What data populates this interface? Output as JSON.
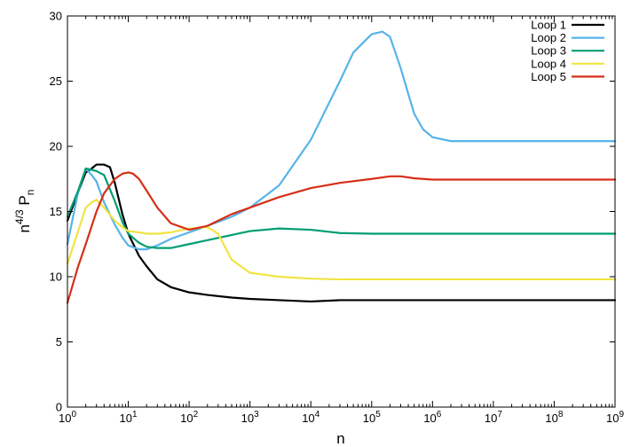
{
  "chart_data": {
    "type": "line",
    "title": "",
    "xlabel": "n",
    "ylabel": {
      "base": "n",
      "sup": "4/3",
      "main": " P",
      "sub": "n"
    },
    "xscale": "log",
    "xlim": [
      1,
      1000000000
    ],
    "ylim": [
      0,
      30
    ],
    "x_ticks": [
      {
        "value": 1,
        "base": "10",
        "exp": "0"
      },
      {
        "value": 10,
        "base": "10",
        "exp": "1"
      },
      {
        "value": 100,
        "base": "10",
        "exp": "2"
      },
      {
        "value": 1000,
        "base": "10",
        "exp": "3"
      },
      {
        "value": 10000,
        "base": "10",
        "exp": "4"
      },
      {
        "value": 100000,
        "base": "10",
        "exp": "5"
      },
      {
        "value": 1000000,
        "base": "10",
        "exp": "6"
      },
      {
        "value": 10000000,
        "base": "10",
        "exp": "7"
      },
      {
        "value": 100000000,
        "base": "10",
        "exp": "8"
      },
      {
        "value": 1000000000,
        "base": "10",
        "exp": "9"
      }
    ],
    "y_ticks": [
      "0",
      "5",
      "10",
      "15",
      "20",
      "25",
      "30"
    ],
    "grid": false,
    "legend_position": "top-right",
    "series": [
      {
        "name": "Loop 1",
        "color": "#000000",
        "x": [
          1,
          1.5,
          2,
          2.5,
          3,
          4,
          5,
          6,
          8,
          10,
          15,
          20,
          30,
          50,
          100,
          200,
          500,
          1000,
          3000,
          10000,
          30000,
          100000,
          1000000,
          10000000,
          1000000000
        ],
        "y": [
          14.3,
          16.5,
          18.0,
          18.3,
          18.6,
          18.6,
          18.4,
          17.2,
          14.8,
          13.3,
          11.6,
          10.8,
          9.8,
          9.2,
          8.8,
          8.6,
          8.4,
          8.3,
          8.2,
          8.1,
          8.2,
          8.2,
          8.2,
          8.2,
          8.2
        ]
      },
      {
        "name": "Loop 2",
        "color": "#56b4e9",
        "x": [
          1,
          1.5,
          2,
          2.5,
          3,
          4,
          6,
          8,
          10,
          15,
          20,
          30,
          50,
          100,
          200,
          500,
          1000,
          3000,
          10000,
          30000,
          50000,
          100000,
          150000,
          200000,
          300000,
          500000,
          700000,
          1000000,
          2000000,
          10000000,
          1000000000
        ],
        "y": [
          12.5,
          16.5,
          18.3,
          17.8,
          17.3,
          15.7,
          14.0,
          13.0,
          12.4,
          12.1,
          12.1,
          12.4,
          12.9,
          13.4,
          13.9,
          14.6,
          15.3,
          17.0,
          20.5,
          25.0,
          27.2,
          28.6,
          28.8,
          28.4,
          26.0,
          22.5,
          21.3,
          20.7,
          20.4,
          20.4,
          20.4
        ]
      },
      {
        "name": "Loop 3",
        "color": "#009e73",
        "x": [
          1,
          1.5,
          2,
          2.5,
          3,
          4,
          6,
          8,
          10,
          15,
          20,
          30,
          50,
          100,
          200,
          500,
          1000,
          3000,
          10000,
          30000,
          100000,
          1000000,
          1000000000
        ],
        "y": [
          14.6,
          16.6,
          18.3,
          18.2,
          18.1,
          17.8,
          15.8,
          14.2,
          13.3,
          12.6,
          12.3,
          12.2,
          12.2,
          12.5,
          12.8,
          13.2,
          13.5,
          13.7,
          13.6,
          13.35,
          13.3,
          13.3,
          13.3
        ]
      },
      {
        "name": "Loop 4",
        "color": "#f0e442",
        "x": [
          1,
          1.5,
          2,
          2.5,
          3,
          4,
          6,
          8,
          10,
          15,
          20,
          30,
          50,
          100,
          200,
          300,
          500,
          1000,
          3000,
          10000,
          30000,
          1000000,
          1000000000
        ],
        "y": [
          11.0,
          13.5,
          15.3,
          15.7,
          15.9,
          15.3,
          14.3,
          13.8,
          13.5,
          13.4,
          13.3,
          13.3,
          13.4,
          13.7,
          13.8,
          13.3,
          11.3,
          10.3,
          10.0,
          9.85,
          9.8,
          9.8,
          9.8
        ]
      },
      {
        "name": "Loop 5",
        "color": "#d62f18",
        "x": [
          1,
          1.5,
          2,
          3,
          4,
          6,
          8,
          10,
          12,
          15,
          20,
          30,
          50,
          100,
          200,
          500,
          1000,
          3000,
          10000,
          30000,
          100000,
          200000,
          300000,
          500000,
          1000000,
          10000000,
          1000000000
        ],
        "y": [
          8.0,
          10.8,
          12.5,
          15.0,
          16.4,
          17.5,
          17.9,
          18.0,
          17.9,
          17.5,
          16.6,
          15.3,
          14.1,
          13.6,
          13.9,
          14.8,
          15.3,
          16.1,
          16.8,
          17.2,
          17.5,
          17.7,
          17.7,
          17.55,
          17.45,
          17.45,
          17.45
        ]
      }
    ]
  }
}
